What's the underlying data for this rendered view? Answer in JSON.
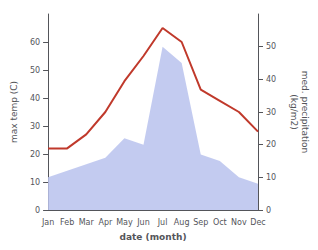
{
  "chart_data": {
    "type": "line",
    "xlabel": "date (month)",
    "ylabel": "max temp (C)",
    "y2label": "med. precipitation\n(kg/m2)",
    "categories": [
      "Jan",
      "Feb",
      "Mar",
      "Apr",
      "May",
      "Jun",
      "Jul",
      "Aug",
      "Sep",
      "Oct",
      "Nov",
      "Dec"
    ],
    "series": [
      {
        "type": "area",
        "axis": "y2",
        "color": "#bcc5ee",
        "values": [
          10,
          12,
          14,
          16,
          22,
          20,
          50,
          45,
          17,
          15,
          10,
          8
        ]
      },
      {
        "type": "line",
        "color": "#c0392b",
        "values": [
          22,
          22,
          27,
          35,
          46,
          55,
          65,
          60,
          43,
          39,
          35,
          28
        ]
      }
    ],
    "ylim": [
      0,
      70
    ],
    "yticks": [
      0,
      10,
      20,
      30,
      40,
      50,
      60
    ],
    "y2lim": [
      0,
      60
    ],
    "y2ticks": [
      0,
      10,
      20,
      30,
      40,
      50
    ],
    "grid": false
  }
}
